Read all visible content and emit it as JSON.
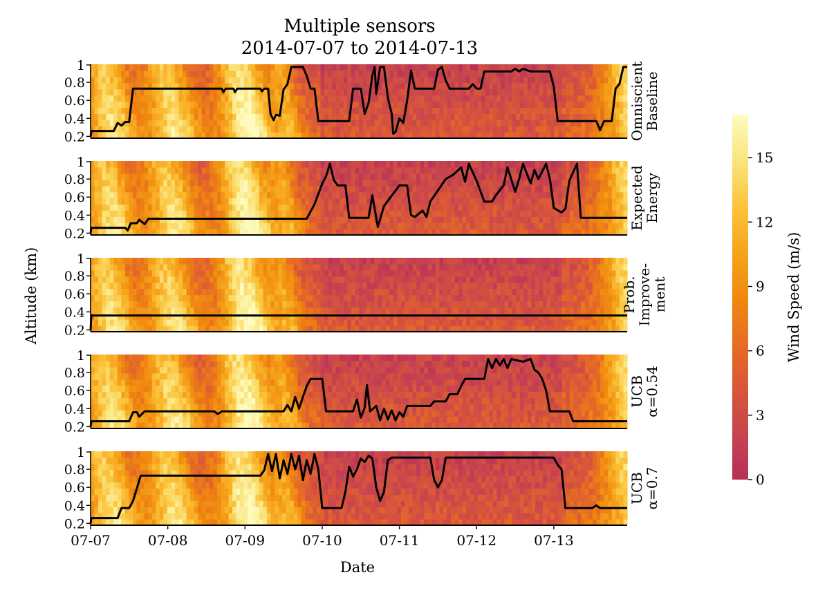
{
  "chart_data": {
    "type": "heatmap",
    "title": "Multiple sensors",
    "subtitle": "2014-07-07 to 2014-07-13",
    "xlabel": "Date",
    "ylabel": "Altitude (km)",
    "x_ticks": [
      "07-07",
      "07-08",
      "07-09",
      "07-10",
      "07-11",
      "07-12",
      "07-13"
    ],
    "xlim_days": [
      0,
      6.95
    ],
    "y_ticks": [
      "0.2",
      "0.4",
      "0.6",
      "0.8",
      "1"
    ],
    "ylim": [
      0.18,
      1.0
    ],
    "colorbar": {
      "label": "Wind Speed (m/s)",
      "range": [
        0,
        17
      ],
      "ticks": [
        "0",
        "3",
        "6",
        "9",
        "12",
        "15"
      ],
      "tick_values": [
        0,
        3,
        6,
        9,
        12,
        15
      ],
      "colormap": [
        "#b62f59",
        "#c6454e",
        "#d9553b",
        "#e76e22",
        "#f0890f",
        "#f6a41c",
        "#fbc43c",
        "#fbe47e",
        "#fdfbbd"
      ]
    },
    "series": [
      {
        "name": "Omniscient Baseline",
        "label_lines": [
          "Omniscient",
          "Baseline"
        ],
        "path_day": [
          [
            0,
            0.2
          ],
          [
            0.01,
            0.26
          ],
          [
            0.3,
            0.26
          ],
          [
            0.35,
            0.35
          ],
          [
            0.4,
            0.32
          ],
          [
            0.45,
            0.36
          ],
          [
            0.5,
            0.36
          ],
          [
            0.55,
            0.73
          ],
          [
            1.7,
            0.73
          ],
          [
            1.72,
            0.69
          ],
          [
            1.75,
            0.73
          ],
          [
            1.85,
            0.73
          ],
          [
            1.87,
            0.69
          ],
          [
            1.9,
            0.73
          ],
          [
            2.2,
            0.73
          ],
          [
            2.22,
            0.7
          ],
          [
            2.25,
            0.73
          ],
          [
            2.3,
            0.73
          ],
          [
            2.33,
            0.45
          ],
          [
            2.37,
            0.38
          ],
          [
            2.4,
            0.44
          ],
          [
            2.45,
            0.43
          ],
          [
            2.5,
            0.72
          ],
          [
            2.55,
            0.78
          ],
          [
            2.6,
            0.97
          ],
          [
            2.75,
            0.97
          ],
          [
            2.8,
            0.87
          ],
          [
            2.85,
            0.73
          ],
          [
            2.9,
            0.73
          ],
          [
            2.95,
            0.37
          ],
          [
            3.35,
            0.37
          ],
          [
            3.4,
            0.73
          ],
          [
            3.5,
            0.73
          ],
          [
            3.55,
            0.45
          ],
          [
            3.6,
            0.57
          ],
          [
            3.65,
            0.88
          ],
          [
            3.68,
            0.97
          ],
          [
            3.7,
            0.67
          ],
          [
            3.75,
            0.97
          ],
          [
            3.8,
            0.97
          ],
          [
            3.85,
            0.63
          ],
          [
            3.9,
            0.45
          ],
          [
            3.92,
            0.23
          ],
          [
            3.95,
            0.25
          ],
          [
            4.0,
            0.4
          ],
          [
            4.05,
            0.35
          ],
          [
            4.1,
            0.6
          ],
          [
            4.15,
            0.93
          ],
          [
            4.2,
            0.73
          ],
          [
            4.45,
            0.73
          ],
          [
            4.5,
            0.94
          ],
          [
            4.55,
            0.97
          ],
          [
            4.6,
            0.82
          ],
          [
            4.65,
            0.73
          ],
          [
            4.9,
            0.73
          ],
          [
            4.95,
            0.78
          ],
          [
            5.0,
            0.73
          ],
          [
            5.05,
            0.73
          ],
          [
            5.1,
            0.92
          ],
          [
            5.45,
            0.92
          ],
          [
            5.5,
            0.95
          ],
          [
            5.55,
            0.92
          ],
          [
            5.6,
            0.95
          ],
          [
            5.7,
            0.92
          ],
          [
            5.95,
            0.92
          ],
          [
            6.0,
            0.75
          ],
          [
            6.05,
            0.37
          ],
          [
            6.55,
            0.37
          ],
          [
            6.6,
            0.27
          ],
          [
            6.65,
            0.37
          ],
          [
            6.75,
            0.37
          ],
          [
            6.8,
            0.73
          ],
          [
            6.85,
            0.78
          ],
          [
            6.9,
            0.97
          ],
          [
            7.0,
            0.97
          ]
        ]
      },
      {
        "name": "Expected Energy",
        "label_lines": [
          "Expected",
          "Energy"
        ],
        "path_day": [
          [
            0,
            0.2
          ],
          [
            0.01,
            0.26
          ],
          [
            0.45,
            0.26
          ],
          [
            0.48,
            0.23
          ],
          [
            0.52,
            0.31
          ],
          [
            0.6,
            0.31
          ],
          [
            0.63,
            0.35
          ],
          [
            0.7,
            0.3
          ],
          [
            0.75,
            0.36
          ],
          [
            2.8,
            0.36
          ],
          [
            2.9,
            0.52
          ],
          [
            3.0,
            0.75
          ],
          [
            3.05,
            0.83
          ],
          [
            3.1,
            0.97
          ],
          [
            3.15,
            0.79
          ],
          [
            3.2,
            0.73
          ],
          [
            3.3,
            0.73
          ],
          [
            3.35,
            0.37
          ],
          [
            3.6,
            0.37
          ],
          [
            3.65,
            0.62
          ],
          [
            3.7,
            0.37
          ],
          [
            3.72,
            0.27
          ],
          [
            3.8,
            0.5
          ],
          [
            4.0,
            0.73
          ],
          [
            4.1,
            0.73
          ],
          [
            4.15,
            0.4
          ],
          [
            4.2,
            0.38
          ],
          [
            4.3,
            0.45
          ],
          [
            4.35,
            0.38
          ],
          [
            4.4,
            0.55
          ],
          [
            4.6,
            0.8
          ],
          [
            4.7,
            0.85
          ],
          [
            4.8,
            0.93
          ],
          [
            4.85,
            0.77
          ],
          [
            4.9,
            0.97
          ],
          [
            5.0,
            0.78
          ],
          [
            5.1,
            0.55
          ],
          [
            5.2,
            0.55
          ],
          [
            5.25,
            0.62
          ],
          [
            5.35,
            0.73
          ],
          [
            5.4,
            0.93
          ],
          [
            5.5,
            0.66
          ],
          [
            5.55,
            0.8
          ],
          [
            5.6,
            0.97
          ],
          [
            5.7,
            0.75
          ],
          [
            5.75,
            0.9
          ],
          [
            5.8,
            0.8
          ],
          [
            5.9,
            0.97
          ],
          [
            5.95,
            0.8
          ],
          [
            6.0,
            0.48
          ],
          [
            6.1,
            0.43
          ],
          [
            6.15,
            0.47
          ],
          [
            6.2,
            0.78
          ],
          [
            6.3,
            0.97
          ],
          [
            6.35,
            0.37
          ],
          [
            7.0,
            0.37
          ]
        ]
      },
      {
        "name": "Prob. Improvement",
        "label_lines": [
          "Prob.",
          "Improve-",
          "ment"
        ],
        "path_day": [
          [
            0,
            0.2
          ],
          [
            0.01,
            0.36
          ],
          [
            7.0,
            0.36
          ]
        ]
      },
      {
        "name": "UCB α=0.54",
        "label_lines": [
          "UCB",
          "α=0.54"
        ],
        "path_day": [
          [
            0,
            0.2
          ],
          [
            0.01,
            0.26
          ],
          [
            0.5,
            0.26
          ],
          [
            0.55,
            0.36
          ],
          [
            0.6,
            0.36
          ],
          [
            0.63,
            0.31
          ],
          [
            0.7,
            0.37
          ],
          [
            1.6,
            0.37
          ],
          [
            1.65,
            0.34
          ],
          [
            1.7,
            0.37
          ],
          [
            2.5,
            0.37
          ],
          [
            2.55,
            0.44
          ],
          [
            2.6,
            0.37
          ],
          [
            2.65,
            0.53
          ],
          [
            2.7,
            0.4
          ],
          [
            2.75,
            0.53
          ],
          [
            2.8,
            0.65
          ],
          [
            2.85,
            0.73
          ],
          [
            3.0,
            0.73
          ],
          [
            3.05,
            0.37
          ],
          [
            3.4,
            0.37
          ],
          [
            3.45,
            0.5
          ],
          [
            3.5,
            0.3
          ],
          [
            3.55,
            0.41
          ],
          [
            3.58,
            0.66
          ],
          [
            3.62,
            0.37
          ],
          [
            3.7,
            0.43
          ],
          [
            3.75,
            0.27
          ],
          [
            3.8,
            0.4
          ],
          [
            3.85,
            0.28
          ],
          [
            3.9,
            0.38
          ],
          [
            3.95,
            0.27
          ],
          [
            4.0,
            0.36
          ],
          [
            4.05,
            0.31
          ],
          [
            4.1,
            0.43
          ],
          [
            4.4,
            0.43
          ],
          [
            4.45,
            0.48
          ],
          [
            4.6,
            0.48
          ],
          [
            4.65,
            0.56
          ],
          [
            4.75,
            0.56
          ],
          [
            4.8,
            0.65
          ],
          [
            4.85,
            0.73
          ],
          [
            5.1,
            0.73
          ],
          [
            5.15,
            0.95
          ],
          [
            5.2,
            0.85
          ],
          [
            5.25,
            0.95
          ],
          [
            5.3,
            0.88
          ],
          [
            5.35,
            0.95
          ],
          [
            5.4,
            0.85
          ],
          [
            5.45,
            0.95
          ],
          [
            5.6,
            0.92
          ],
          [
            5.7,
            0.95
          ],
          [
            5.75,
            0.83
          ],
          [
            5.8,
            0.8
          ],
          [
            5.85,
            0.73
          ],
          [
            5.9,
            0.6
          ],
          [
            5.95,
            0.37
          ],
          [
            6.2,
            0.37
          ],
          [
            6.25,
            0.26
          ],
          [
            7.0,
            0.26
          ]
        ]
      },
      {
        "name": "UCB α=0.7",
        "label_lines": [
          "UCB",
          "α=0.7"
        ],
        "path_day": [
          [
            0,
            0.2
          ],
          [
            0.01,
            0.26
          ],
          [
            0.35,
            0.26
          ],
          [
            0.4,
            0.37
          ],
          [
            0.5,
            0.37
          ],
          [
            0.55,
            0.45
          ],
          [
            0.65,
            0.73
          ],
          [
            2.2,
            0.73
          ],
          [
            2.25,
            0.79
          ],
          [
            2.3,
            0.97
          ],
          [
            2.35,
            0.78
          ],
          [
            2.4,
            0.97
          ],
          [
            2.45,
            0.7
          ],
          [
            2.5,
            0.9
          ],
          [
            2.55,
            0.75
          ],
          [
            2.6,
            0.97
          ],
          [
            2.65,
            0.8
          ],
          [
            2.7,
            0.95
          ],
          [
            2.75,
            0.68
          ],
          [
            2.8,
            0.9
          ],
          [
            2.85,
            0.75
          ],
          [
            2.9,
            0.97
          ],
          [
            2.95,
            0.8
          ],
          [
            3.0,
            0.37
          ],
          [
            3.25,
            0.37
          ],
          [
            3.3,
            0.55
          ],
          [
            3.35,
            0.83
          ],
          [
            3.4,
            0.72
          ],
          [
            3.45,
            0.8
          ],
          [
            3.5,
            0.92
          ],
          [
            3.55,
            0.88
          ],
          [
            3.6,
            0.95
          ],
          [
            3.65,
            0.92
          ],
          [
            3.7,
            0.6
          ],
          [
            3.75,
            0.45
          ],
          [
            3.8,
            0.55
          ],
          [
            3.85,
            0.9
          ],
          [
            3.9,
            0.93
          ],
          [
            4.4,
            0.93
          ],
          [
            4.45,
            0.68
          ],
          [
            4.5,
            0.6
          ],
          [
            4.55,
            0.68
          ],
          [
            4.6,
            0.93
          ],
          [
            6.0,
            0.93
          ],
          [
            6.05,
            0.85
          ],
          [
            6.1,
            0.8
          ],
          [
            6.15,
            0.37
          ],
          [
            6.5,
            0.37
          ],
          [
            6.55,
            0.4
          ],
          [
            6.6,
            0.37
          ],
          [
            7.0,
            0.37
          ]
        ]
      }
    ]
  }
}
